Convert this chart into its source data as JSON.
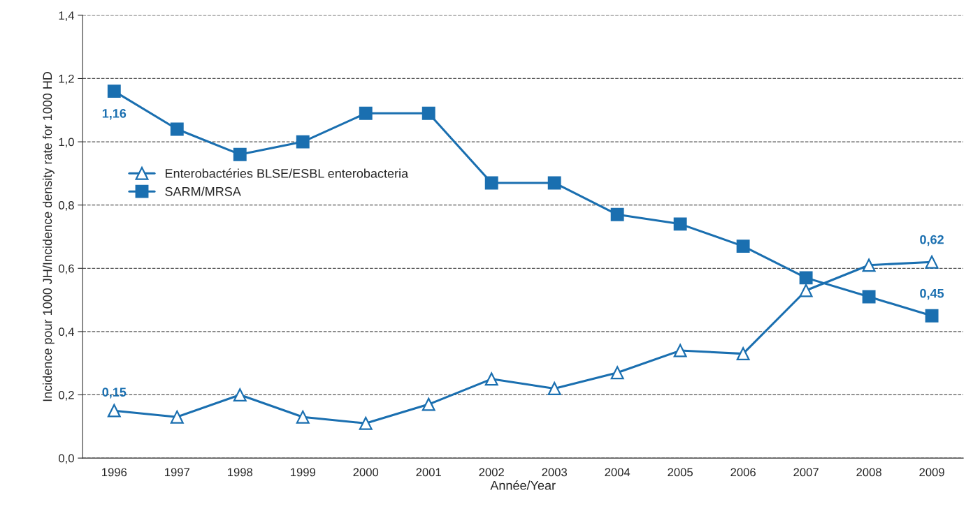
{
  "chart_data": {
    "type": "line",
    "xlabel": "Année/Year",
    "ylabel": "Incidence pour 1000 JH/Incidence density rate for 1000 HD",
    "categories": [
      "1996",
      "1997",
      "1998",
      "1999",
      "2000",
      "2001",
      "2002",
      "2003",
      "2004",
      "2005",
      "2006",
      "2007",
      "2008",
      "2009"
    ],
    "series": [
      {
        "name": "Enterobactéries BLSE/ESBL enterobacteria",
        "color": "#1a6fb0",
        "marker": "triangle",
        "values": [
          0.15,
          0.13,
          0.2,
          0.13,
          0.11,
          0.17,
          0.25,
          0.22,
          0.27,
          0.34,
          0.33,
          0.53,
          0.61,
          0.62
        ],
        "value_labels": [
          "0,15",
          null,
          null,
          null,
          null,
          null,
          null,
          null,
          null,
          null,
          null,
          null,
          null,
          "0,62"
        ]
      },
      {
        "name": "SARM/MRSA",
        "color": "#1a6fb0",
        "marker": "square",
        "values": [
          1.16,
          1.04,
          0.96,
          1.0,
          1.09,
          1.09,
          0.87,
          0.87,
          0.77,
          0.74,
          0.67,
          0.57,
          0.51,
          0.45
        ],
        "value_labels": [
          "1,16",
          null,
          null,
          null,
          null,
          null,
          null,
          null,
          null,
          null,
          null,
          null,
          null,
          "0,45"
        ]
      }
    ],
    "ylim": [
      0,
      1.4
    ],
    "yticks": [
      {
        "value": 0,
        "label": "0,0"
      },
      {
        "value": 0.2,
        "label": "0,2"
      },
      {
        "value": 0.4,
        "label": "0,4"
      },
      {
        "value": 0.6,
        "label": "0,6"
      },
      {
        "value": 0.8,
        "label": "0,8"
      },
      {
        "value": 1.0,
        "label": "1,0"
      },
      {
        "value": 1.2,
        "label": "1,2"
      },
      {
        "value": 1.4,
        "label": "1,4"
      }
    ],
    "grid": "y",
    "line_style": "solid",
    "legend": "left"
  }
}
